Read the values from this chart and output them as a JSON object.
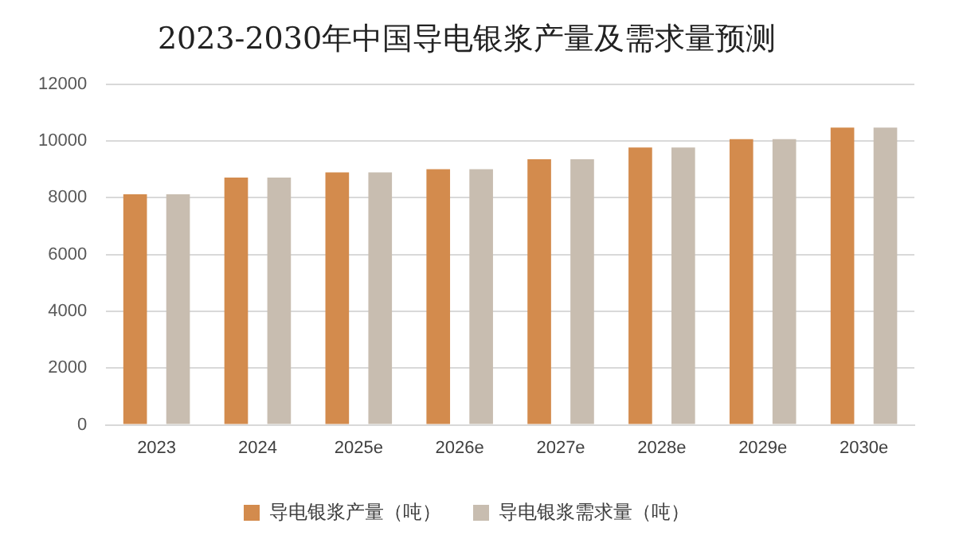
{
  "chart_data": {
    "type": "bar",
    "title": "2023-2030年中国导电银浆产量及需求量预测",
    "categories": [
      "2023",
      "2024",
      "2025e",
      "2026e",
      "2027e",
      "2028e",
      "2029e",
      "2030e"
    ],
    "series": [
      {
        "name": "导电银浆产量（吨）",
        "color": "#d38b4d",
        "values": [
          8120,
          8710,
          8890,
          9000,
          9350,
          9770,
          10060,
          10470
        ]
      },
      {
        "name": "导电银浆需求量（吨）",
        "color": "#c8bdb0",
        "values": [
          8120,
          8710,
          8890,
          9000,
          9350,
          9770,
          10060,
          10470
        ]
      }
    ],
    "ylim": [
      0,
      12000
    ],
    "yticks": [
      0,
      2000,
      4000,
      6000,
      8000,
      10000,
      12000
    ],
    "grid": "y",
    "legend": "bottom"
  }
}
